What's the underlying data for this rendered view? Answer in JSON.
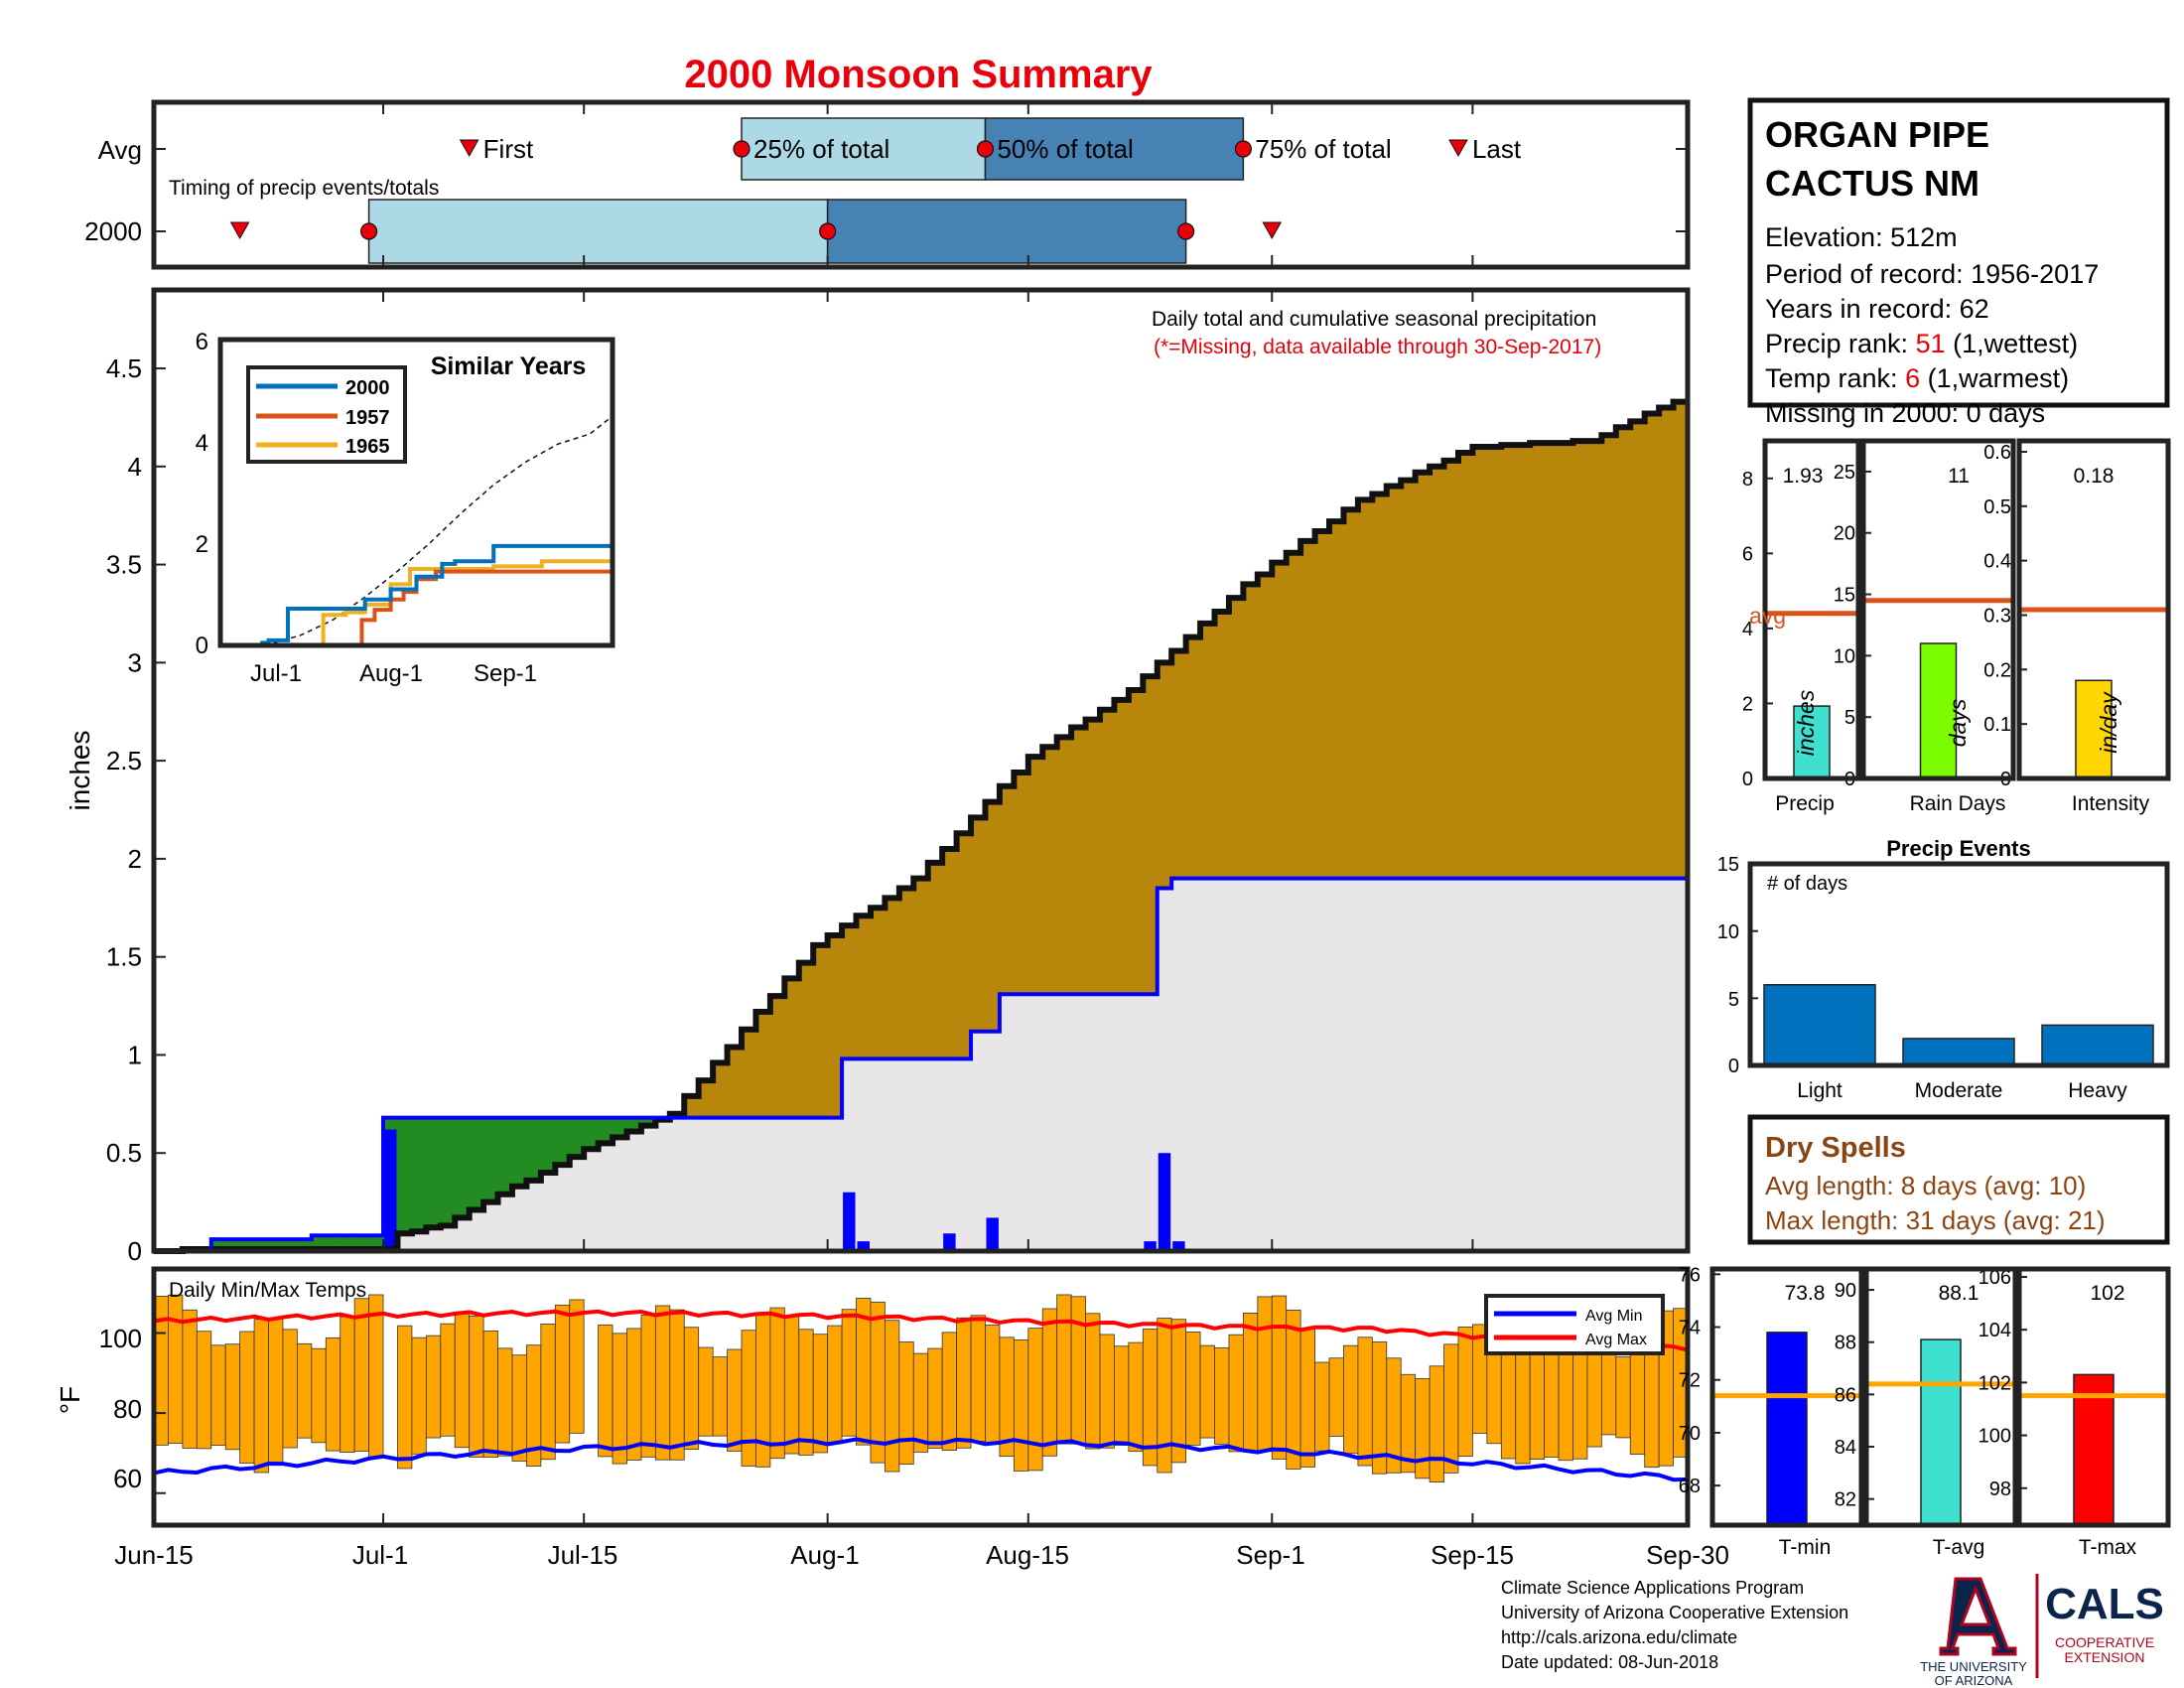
{
  "title": "2000 Monsoon Summary",
  "station": {
    "name_line1": "ORGAN PIPE",
    "name_line2": "CACTUS NM",
    "elevation": "Elevation: 512m",
    "period": "Period of record: 1956-2017",
    "years": "Years in record: 62",
    "precip_rank_label": "Precip rank: ",
    "precip_rank_value": "51",
    "precip_rank_note": " (1,wettest)",
    "temp_rank_label": "Temp rank: ",
    "temp_rank_value": "6",
    "temp_rank_note": " (1,warmest)",
    "missing": "Missing in 2000: 0 days"
  },
  "timing": {
    "note": "Timing of precip events/totals",
    "row_labels": [
      "Avg",
      "2000"
    ],
    "avg_labels": [
      "First",
      "25% of total",
      "50% of total",
      "75% of total",
      "Last"
    ],
    "avg_dates": [
      "2000-07-07",
      "2000-07-26",
      "2000-08-12",
      "2000-08-30",
      "2000-09-14"
    ],
    "yr_dates": [
      "2000-06-21",
      "2000-06-30",
      "2000-08-01",
      "2000-08-26",
      "2000-09-01"
    ],
    "colors": {
      "q1": "#add8e6",
      "q2": "#4682b4",
      "marker": "#e8000b"
    }
  },
  "precip_header": {
    "title": "Daily total and cumulative seasonal precipitation",
    "missing_note": "(*=Missing, data available through 30-Sep-2017)"
  },
  "inset": {
    "title": "Similar Years",
    "legend": [
      "2000",
      "1957",
      "1965"
    ],
    "x_ticks": [
      "Jul-1",
      "Aug-1",
      "Sep-1"
    ],
    "y_ticks": [
      "0",
      "2",
      "4",
      "6"
    ]
  },
  "x_ticks": [
    "Jun-15",
    "Jul-1",
    "Jul-15",
    "Aug-1",
    "Aug-15",
    "Sep-1",
    "Sep-15",
    "Sep-30"
  ],
  "precip_y_ticks": [
    "0",
    "0.5",
    "1",
    "1.5",
    "2",
    "2.5",
    "3",
    "3.5",
    "4",
    "4.5"
  ],
  "precip_y_label": "inches",
  "temp_header": "Daily Min/Max Temps",
  "temp_y_label": "°F",
  "temp_y_ticks": [
    "60",
    "80",
    "100"
  ],
  "temp_legend": [
    "Avg Min",
    "Avg Max"
  ],
  "bars": {
    "precip": {
      "value": "1.93",
      "label": "Precip",
      "unit": "inches",
      "ticks": [
        "0",
        "2",
        "4",
        "6",
        "8"
      ],
      "avg_label": "avg"
    },
    "raindays": {
      "value": "11",
      "label": "Rain Days",
      "unit": "days",
      "ticks": [
        "0",
        "5",
        "10",
        "15",
        "20",
        "25"
      ]
    },
    "intensity": {
      "value": "0.18",
      "label": "Intensity",
      "unit": "in/day",
      "ticks": [
        "0",
        "0.1",
        "0.2",
        "0.3",
        "0.4",
        "0.5",
        "0.6"
      ]
    }
  },
  "events": {
    "title": "Precip Events",
    "ylabel": "# of days",
    "categories": [
      "Light",
      "Moderate",
      "Heavy"
    ],
    "ticks": [
      "0",
      "5",
      "10",
      "15"
    ]
  },
  "dry_spells": {
    "title": "Dry Spells",
    "avg_length": "Avg length: 8 days (avg: 10)",
    "max_length": "Max length: 31 days (avg: 21)"
  },
  "temps": {
    "tmin": {
      "value": "73.8",
      "label": "T-min",
      "ticks": [
        "68",
        "70",
        "72",
        "74",
        "76"
      ]
    },
    "tavg": {
      "value": "88.1",
      "label": "T-avg",
      "ticks": [
        "82",
        "84",
        "86",
        "88",
        "90"
      ]
    },
    "tmax": {
      "value": "102",
      "label": "T-max",
      "ticks": [
        "98",
        "100",
        "102",
        "104",
        "106"
      ]
    }
  },
  "footer": {
    "line1": "Climate Science Applications Program",
    "line2": "University of Arizona Cooperative Extension",
    "line3": "http://cals.arizona.edu/climate",
    "line4": " Date updated: 08-Jun-2018",
    "ua_line1": "THE UNIVERSITY",
    "ua_line2": "OF ARIZONA",
    "cals": "CALS",
    "cals_sub1": "COOPERATIVE",
    "cals_sub2": "EXTENSION"
  },
  "colors": {
    "above_avg": "#b8860b",
    "below_avg": "#228b22",
    "avg_area": "#e8e6e6",
    "avg_line": "#0000ff",
    "daily_bar": "#0000ff",
    "temp_bar": "#ffa500",
    "avg_min": "#0000ff",
    "avg_max": "#ff0000",
    "red_text": "#e8000b",
    "orange_line": "#d95319",
    "dry_text": "#8b4513",
    "ua_navy": "#0c234b",
    "ua_red": "#ab0520"
  },
  "chart_data": [
    {
      "type": "area",
      "name": "cumulative seasonal precipitation",
      "xlim": [
        "2000-06-15",
        "2000-09-30"
      ],
      "ylim": [
        0,
        4.9
      ],
      "ylabel": "inches",
      "cumulative_2000": [
        [
          0,
          0
        ],
        [
          4,
          0.01
        ],
        [
          16,
          0.01
        ],
        [
          17,
          0.09
        ],
        [
          20,
          0.13
        ],
        [
          30,
          0.52
        ],
        [
          36,
          0.7
        ],
        [
          46,
          1.56
        ],
        [
          53,
          1.9
        ],
        [
          61,
          2.52
        ],
        [
          68,
          2.86
        ],
        [
          76,
          3.4
        ],
        [
          84,
          3.83
        ],
        [
          92,
          4.1
        ],
        [
          100,
          4.13
        ],
        [
          108,
          4.4
        ],
        [
          108,
          4.42
        ]
      ],
      "cumulative_avg": [
        [
          0,
          0
        ],
        [
          4,
          0.06
        ],
        [
          11,
          0.08
        ],
        [
          16,
          0.09
        ],
        [
          16,
          0.68
        ],
        [
          48,
          0.68
        ],
        [
          48,
          0.98
        ],
        [
          57,
          1.03
        ],
        [
          57,
          1.12
        ],
        [
          59,
          1.12
        ],
        [
          59,
          1.31
        ],
        [
          70,
          1.31
        ],
        [
          70,
          1.85
        ],
        [
          71,
          1.9
        ],
        [
          108,
          1.93
        ]
      ],
      "daily_2000": [
        [
          16,
          0.62
        ],
        [
          48,
          0.3
        ],
        [
          49,
          0.05
        ],
        [
          55,
          0.09
        ],
        [
          58,
          0.17
        ],
        [
          69,
          0.05
        ],
        [
          70,
          0.5
        ],
        [
          71,
          0.05
        ]
      ],
      "x_is_days_since": "2000-06-15"
    },
    {
      "type": "bar",
      "name": "Daily Min/Max Temps",
      "ylim": [
        52,
        116
      ],
      "ylabel": "°F",
      "avg_min_range": [
        64,
        76
      ],
      "avg_max_range": [
        95,
        105
      ]
    },
    {
      "type": "bar",
      "name": "Precip Events",
      "categories": [
        "Light",
        "Moderate",
        "Heavy"
      ],
      "values": [
        6,
        2,
        3
      ],
      "ylim": [
        0,
        15
      ]
    },
    {
      "type": "bar",
      "categories": [
        "Precip",
        "Rain Days",
        "Intensity"
      ],
      "values": [
        1.93,
        11,
        0.18
      ],
      "averages": [
        4.4,
        14.5,
        0.31
      ]
    },
    {
      "type": "bar",
      "categories": [
        "T-min",
        "T-avg",
        "T-max"
      ],
      "values": [
        73.8,
        88.1,
        102.3
      ],
      "averages": [
        71.4,
        86.4,
        101.5
      ]
    }
  ]
}
